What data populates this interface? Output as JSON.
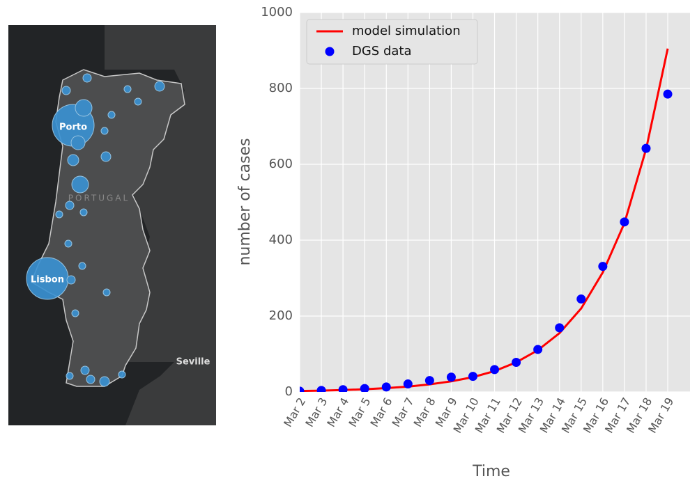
{
  "map": {
    "labels": [
      "Porto",
      "Lisbon",
      "PORTUGAL",
      "Seville"
    ]
  },
  "chart_data": {
    "type": "line",
    "x_label": "Time",
    "y_label": "number of cases",
    "categories": [
      "Mar 2",
      "Mar 3",
      "Mar 4",
      "Mar 5",
      "Mar 6",
      "Mar 7",
      "Mar 8",
      "Mar 9",
      "Mar 10",
      "Mar 11",
      "Mar 12",
      "Mar 13",
      "Mar 14",
      "Mar 15",
      "Mar 16",
      "Mar 17",
      "Mar 18",
      "Mar 19"
    ],
    "series": [
      {
        "name": "model simulation",
        "type": "line",
        "color": "#ff0000",
        "values": [
          2.5,
          3.5,
          5,
          7,
          10,
          14,
          20,
          28,
          39,
          55,
          78,
          110,
          155,
          220,
          315,
          445,
          640,
          905
        ]
      },
      {
        "name": "DGS data",
        "type": "scatter",
        "color": "#0000ff",
        "values": [
          2,
          4,
          6,
          9,
          13,
          21,
          30,
          39,
          41,
          59,
          78,
          112,
          169,
          245,
          331,
          448,
          642,
          785
        ]
      }
    ],
    "ylim": [
      0,
      1000
    ],
    "yticks": [
      0,
      200,
      400,
      600,
      800,
      1000
    ],
    "grid": true,
    "legend": "upper left"
  }
}
